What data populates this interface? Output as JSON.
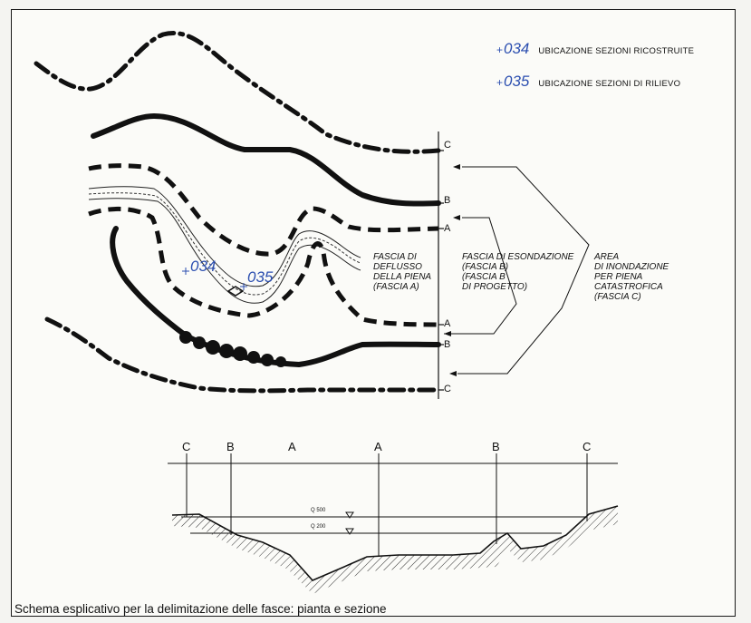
{
  "legend": [
    {
      "num": "034",
      "text": "UBICAZIONE SEZIONI RICOSTRUITE"
    },
    {
      "num": "035",
      "text": "UBICAZIONE SEZIONI DI RILIEVO"
    }
  ],
  "plan": {
    "edge_labels": {
      "c_top": "C",
      "b_top": "B",
      "a_top": "A",
      "a_bottom": "A",
      "b_bottom": "B",
      "c_bottom": "C"
    },
    "section_points": {
      "s1": "034",
      "s2": "035"
    },
    "fascia_a": [
      "FASCIA DI",
      "DEFLUSSO",
      "DELLA PIENA",
      "(FASCIA A)"
    ],
    "fascia_b": [
      "FASCIA DI ESONDAZIONE",
      "(FASCIA B)",
      "(FASCIA B",
      "DI PROGETTO)"
    ],
    "fascia_c": [
      "AREA",
      "DI INONDAZIONE",
      "PER PIENA",
      "CATASTROFICA",
      "(FASCIA C)"
    ]
  },
  "section": {
    "top_labels": [
      "C",
      "B",
      "A",
      "A",
      "B",
      "C"
    ],
    "levels": [
      "Q 500",
      "Q 200"
    ]
  },
  "caption": "Schema esplicativo per la delimitazione delle fasce: pianta e sezione"
}
